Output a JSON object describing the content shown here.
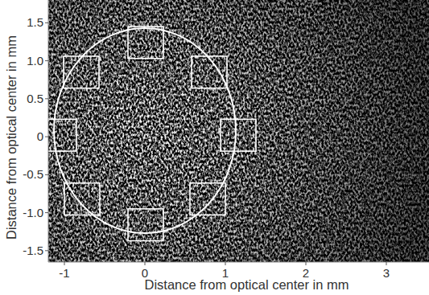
{
  "chart_data": {
    "type": "image",
    "xlabel": "Distance from optical center in mm",
    "ylabel": "Distance from optical center in mm",
    "xlim": [
      -1.2,
      3.53
    ],
    "ylim": [
      -1.65,
      1.8
    ],
    "xticks": [
      -1,
      0,
      1,
      2,
      3
    ],
    "yticks": [
      -1.5,
      {
        "value": -1.0,
        "label": "-1.0"
      },
      -0.5,
      0,
      0.5,
      {
        "value": 1.0,
        "label": "1.0"
      },
      1.5
    ],
    "color": "#ffffff",
    "ellipse": {
      "center": [
        0,
        0.08
      ],
      "radius": [
        1.13,
        1.35
      ]
    },
    "regions": [
      {
        "center": [
          0.01,
          1.24
        ],
        "size": [
          0.44,
          0.42
        ]
      },
      {
        "center": [
          -0.79,
          0.85
        ],
        "size": [
          0.44,
          0.42
        ]
      },
      {
        "center": [
          0.8,
          0.85
        ],
        "size": [
          0.44,
          0.42
        ]
      },
      {
        "center": [
          -1.07,
          0.02
        ],
        "size": [
          0.44,
          0.42
        ]
      },
      {
        "center": [
          1.16,
          0.02
        ],
        "size": [
          0.44,
          0.42
        ]
      },
      {
        "center": [
          -0.78,
          -0.82
        ],
        "size": [
          0.44,
          0.42
        ]
      },
      {
        "center": [
          0.78,
          -0.82
        ],
        "size": [
          0.44,
          0.42
        ]
      },
      {
        "center": [
          0.01,
          -1.16
        ],
        "size": [
          0.44,
          0.42
        ]
      }
    ]
  }
}
